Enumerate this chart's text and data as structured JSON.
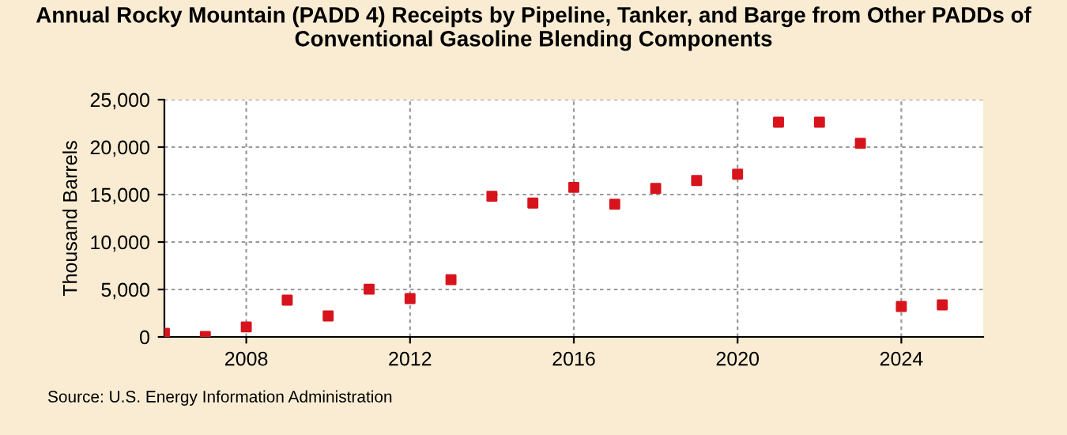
{
  "chart_data": {
    "type": "scatter",
    "title": "Annual Rocky Mountain (PADD 4) Receipts by Pipeline, Tanker, and Barge from Other PADDs of\nConventional Gasoline Blending Components",
    "ylabel": "Thousand Barrels",
    "x": [
      2006,
      2007,
      2008,
      2009,
      2010,
      2011,
      2012,
      2013,
      2014,
      2015,
      2016,
      2017,
      2018,
      2019,
      2020,
      2021,
      2022,
      2023,
      2024,
      2025
    ],
    "series": [
      {
        "color": "#d7141c",
        "values": [
          390,
          55,
          1050,
          3870,
          2210,
          5030,
          4040,
          6030,
          14820,
          14100,
          15760,
          13990,
          15650,
          16480,
          17150,
          22620,
          22620,
          20410,
          3210,
          3370
        ]
      }
    ],
    "xlim": [
      2006,
      2026
    ],
    "xticks": [
      2008,
      2012,
      2016,
      2020,
      2024
    ],
    "ylim": [
      0,
      25000
    ],
    "yticks": [
      {
        "value": 0,
        "label": "0"
      },
      {
        "value": 5000,
        "label": "5,000"
      },
      {
        "value": 10000,
        "label": "10,000"
      },
      {
        "value": 15000,
        "label": "15,000"
      },
      {
        "value": 20000,
        "label": "20,000"
      },
      {
        "value": 25000,
        "label": "25,000"
      }
    ],
    "grid": true,
    "marker": "square",
    "annotations": [
      "Source: U.S. Energy Information Administration"
    ]
  }
}
